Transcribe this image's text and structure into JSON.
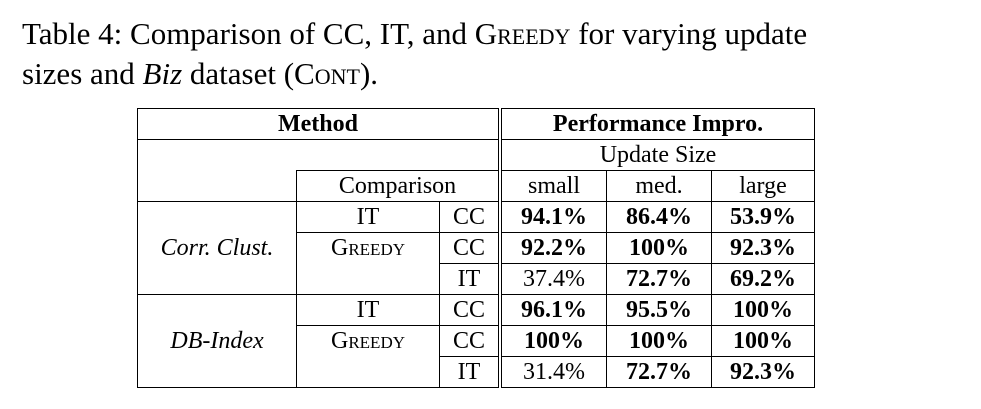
{
  "caption": {
    "prefix": "Table 4: Comparison of CC, IT, and ",
    "greedy_sc": "Greedy",
    "mid": " for varying update",
    "line2_a": "sizes and ",
    "biz": "Biz",
    "line2_b": " dataset (",
    "cont_sc": "Cont",
    "line2_c": ")."
  },
  "table": {
    "header_method": "Method",
    "header_perf": "Performance Impro.",
    "update_size": "Update Size",
    "comparison": "Comparison",
    "sizes": [
      "small",
      "med.",
      "large"
    ],
    "groups": [
      {
        "label": "Corr. Clust.",
        "rows": [
          {
            "a": "IT",
            "a_sc": false,
            "b": "CC",
            "values": [
              "94.1%",
              "86.4%",
              "53.9%"
            ],
            "bold": [
              true,
              true,
              true
            ]
          },
          {
            "a": "Greedy",
            "a_sc": true,
            "b": "CC",
            "values": [
              "92.2%",
              "100%",
              "92.3%"
            ],
            "bold": [
              true,
              true,
              true
            ]
          },
          {
            "a": "",
            "a_sc": false,
            "b": "IT",
            "values": [
              "37.4%",
              "72.7%",
              "69.2%"
            ],
            "bold": [
              false,
              true,
              true
            ]
          }
        ]
      },
      {
        "label": "DB-Index",
        "rows": [
          {
            "a": "IT",
            "a_sc": false,
            "b": "CC",
            "values": [
              "96.1%",
              "95.5%",
              "100%"
            ],
            "bold": [
              true,
              true,
              true
            ]
          },
          {
            "a": "Greedy",
            "a_sc": true,
            "b": "CC",
            "values": [
              "100%",
              "100%",
              "100%"
            ],
            "bold": [
              true,
              true,
              true
            ]
          },
          {
            "a": "",
            "a_sc": false,
            "b": "IT",
            "values": [
              "31.4%",
              "72.7%",
              "92.3%"
            ],
            "bold": [
              false,
              true,
              true
            ]
          }
        ]
      }
    ]
  }
}
